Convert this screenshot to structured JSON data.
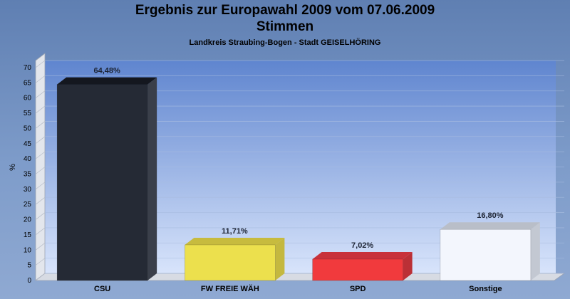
{
  "title": "Ergebnis zur Europawahl 2009 vom 07.06.2009",
  "subtitle": "Stimmen",
  "region": "Landkreis Straubing-Bogen - Stadt GEISELHÖRING",
  "chart_data": {
    "type": "bar",
    "title": "Ergebnis zur Europawahl 2009 vom 07.06.2009",
    "subtitle": "Stimmen",
    "caption": "Landkreis Straubing-Bogen - Stadt GEISELHÖRING",
    "ylabel": "%",
    "xlabel": "",
    "ylim": [
      0,
      70
    ],
    "yticks": [
      0,
      5,
      10,
      15,
      20,
      25,
      30,
      35,
      40,
      45,
      50,
      55,
      60,
      65,
      70
    ],
    "grid": true,
    "categories": [
      "CSU",
      "FW FREIE WÄH",
      "SPD",
      "Sonstige"
    ],
    "values": [
      64.48,
      11.71,
      7.02,
      16.8
    ],
    "value_labels": [
      "64,48%",
      "11,71%",
      "7,02%",
      "16,80%"
    ],
    "colors": [
      "#252a35",
      "#ece04d",
      "#f13a3d",
      "#f3f6fd"
    ],
    "side_colors": [
      "#3a3f4a",
      "#c4b83f",
      "#bb3036",
      "#c3c8d2"
    ],
    "top_colors": [
      "#14171f",
      "#c7bb3e",
      "#c8313a",
      "#b9bec8"
    ]
  }
}
